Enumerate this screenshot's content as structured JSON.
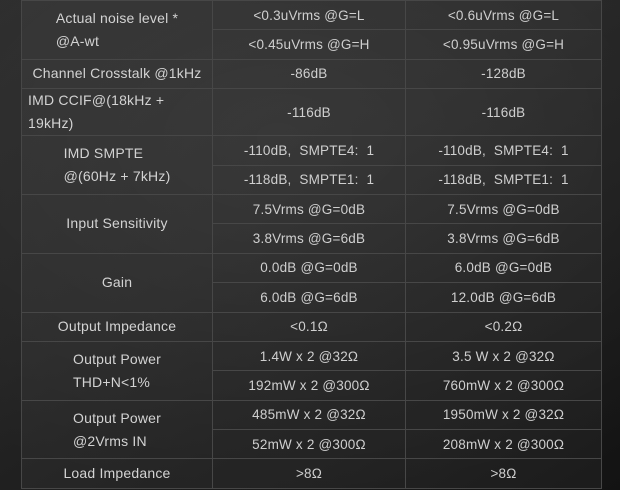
{
  "colors": {
    "page_background": "#1e1e1e",
    "cell_background": "#2e2e2e",
    "border": "#474747",
    "text": "#d3d3d3"
  },
  "table": {
    "description": "audio-specifications-table",
    "columns": [
      "specification",
      "value_column_1",
      "value_column_2"
    ],
    "groups": [
      {
        "label_lines": [
          "Actual noise level *",
          "@A-wt"
        ],
        "rows": [
          [
            "<0.3uVrms @G=L",
            "<0.6uVrms @G=L"
          ],
          [
            "<0.45uVrms @G=H",
            "<0.95uVrms @G=H"
          ]
        ]
      },
      {
        "label_lines": [
          "Channel Crosstalk @1kHz"
        ],
        "rows": [
          [
            "-86dB",
            "-128dB"
          ]
        ]
      },
      {
        "label_lines": [
          "IMD CCIF@(18kHz + 19kHz)"
        ],
        "rows": [
          [
            "-116dB",
            "-116dB"
          ]
        ]
      },
      {
        "label_lines": [
          "IMD SMPTE",
          "@(60Hz + 7kHz)"
        ],
        "rows": [
          [
            "-110dB,  SMPTE4:  1",
            "-110dB,  SMPTE4:  1"
          ],
          [
            "-118dB,  SMPTE1:  1",
            "-118dB,  SMPTE1:  1"
          ]
        ]
      },
      {
        "label_lines": [
          "Input Sensitivity"
        ],
        "rows": [
          [
            "7.5Vrms @G=0dB",
            "7.5Vrms @G=0dB"
          ],
          [
            "3.8Vrms @G=6dB",
            "3.8Vrms @G=6dB"
          ]
        ]
      },
      {
        "label_lines": [
          "Gain"
        ],
        "rows": [
          [
            "0.0dB @G=0dB",
            "6.0dB @G=0dB"
          ],
          [
            "6.0dB @G=6dB",
            "12.0dB @G=6dB"
          ]
        ]
      },
      {
        "label_lines": [
          "Output Impedance"
        ],
        "rows": [
          [
            "<0.1Ω",
            "<0.2Ω"
          ]
        ]
      },
      {
        "label_lines": [
          "Output Power",
          "THD+N<1%"
        ],
        "rows": [
          [
            "1.4W x 2 @32Ω",
            "3.5 W x 2 @32Ω"
          ],
          [
            "192mW x 2 @300Ω",
            "760mW x 2 @300Ω"
          ]
        ]
      },
      {
        "label_lines": [
          "Output Power",
          "@2Vrms IN"
        ],
        "rows": [
          [
            "485mW x 2 @32Ω",
            "1950mW x 2 @32Ω"
          ],
          [
            "52mW x 2 @300Ω",
            "208mW x 2 @300Ω"
          ]
        ]
      },
      {
        "label_lines": [
          "Load Impedance"
        ],
        "rows": [
          [
            ">8Ω",
            ">8Ω"
          ]
        ]
      }
    ]
  }
}
